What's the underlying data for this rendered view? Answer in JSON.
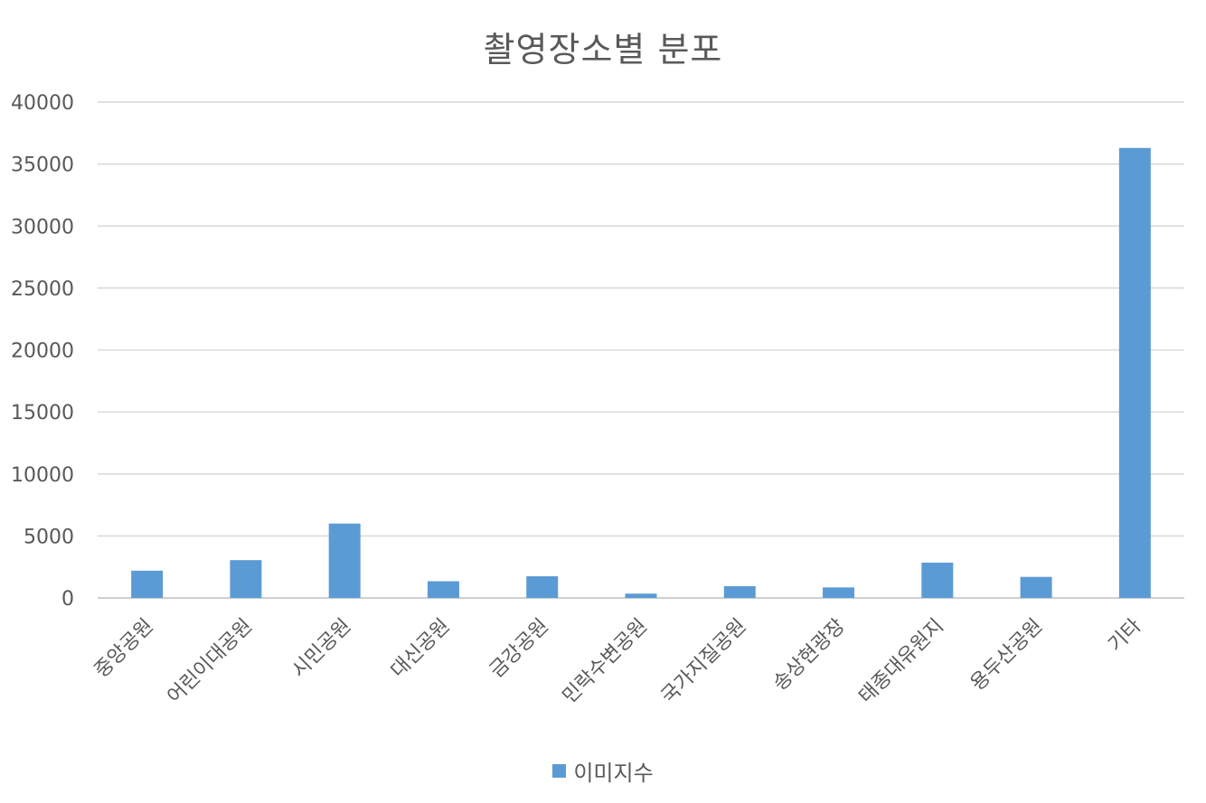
{
  "chart_data": {
    "type": "bar",
    "title": "촬영장소별 분포",
    "xlabel": "",
    "ylabel": "",
    "categories": [
      "중앙공원",
      "어린이대공원",
      "시민공원",
      "대신공원",
      "금강공원",
      "민락수변공원",
      "국가지질공원",
      "송상현광장",
      "태종대유원지",
      "용두산공원",
      "기타"
    ],
    "series": [
      {
        "name": "이미지수",
        "values": [
          2200,
          3050,
          6000,
          1350,
          1750,
          350,
          950,
          850,
          2850,
          1700,
          36300
        ]
      }
    ],
    "ylim": [
      0,
      40000
    ],
    "yticks": [
      0,
      5000,
      10000,
      15000,
      20000,
      25000,
      30000,
      35000,
      40000
    ],
    "grid": true,
    "legend_position": "bottom",
    "bar_color": "#5B9BD5",
    "grid_color": "#D9D9D9",
    "axis_color": "#BFBFBF"
  }
}
